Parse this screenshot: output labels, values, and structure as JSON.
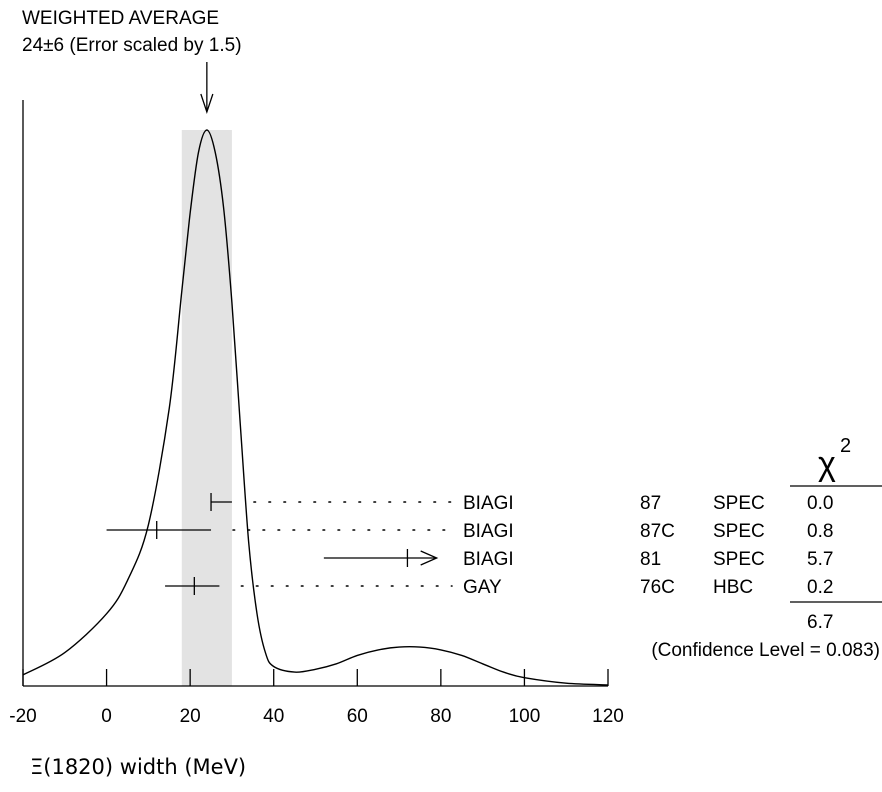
{
  "chart_data": {
    "type": "ideogram",
    "title": "WEIGHTED AVERAGE",
    "subtitle": "24±6 (Error scaled by 1.5)",
    "weighted_average": {
      "value": 24,
      "error": 6,
      "band": [
        18,
        30
      ]
    },
    "xlabel": "Ξ(1820) width (MeV)",
    "xlim": [
      -20,
      120
    ],
    "x_ticks": [
      -20,
      0,
      20,
      40,
      60,
      80,
      100,
      120
    ],
    "ideogram_curve": {
      "x": [
        -20,
        -10,
        0,
        5,
        10,
        15,
        18,
        20,
        22,
        24,
        26,
        28,
        30,
        32,
        34,
        36,
        38,
        40,
        45,
        50,
        55,
        60,
        65,
        70,
        75,
        80,
        85,
        90,
        95,
        100,
        110,
        120
      ],
      "value": [
        0.02,
        0.06,
        0.13,
        0.19,
        0.29,
        0.5,
        0.71,
        0.85,
        0.96,
        1.0,
        0.96,
        0.86,
        0.69,
        0.47,
        0.26,
        0.13,
        0.06,
        0.035,
        0.025,
        0.03,
        0.04,
        0.055,
        0.065,
        0.07,
        0.07,
        0.065,
        0.055,
        0.04,
        0.025,
        0.015,
        0.005,
        0.002
      ]
    },
    "measurements": [
      {
        "author": "BIAGI",
        "year": "87",
        "technique": "SPEC",
        "chi2": "0.0",
        "value": 25,
        "err_low": 25,
        "err_high": 30,
        "arrow": false
      },
      {
        "author": "BIAGI",
        "year": "87C",
        "technique": "SPEC",
        "chi2": "0.8",
        "value": 12,
        "err_low": 0,
        "err_high": 25,
        "arrow": false
      },
      {
        "author": "BIAGI",
        "year": "81",
        "technique": "SPEC",
        "chi2": "5.7",
        "value": 72,
        "err_low": 52,
        "err_high": 79,
        "arrow": true
      },
      {
        "author": "GAY",
        "year": "76C",
        "technique": "HBC",
        "chi2": "0.2",
        "value": 21,
        "err_low": 14,
        "err_high": 27,
        "arrow": false
      }
    ],
    "chi2_header": "χ",
    "chi2_exponent": "2",
    "chi2_total": "6.7",
    "confidence_level": "(Confidence Level = 0.083)"
  }
}
